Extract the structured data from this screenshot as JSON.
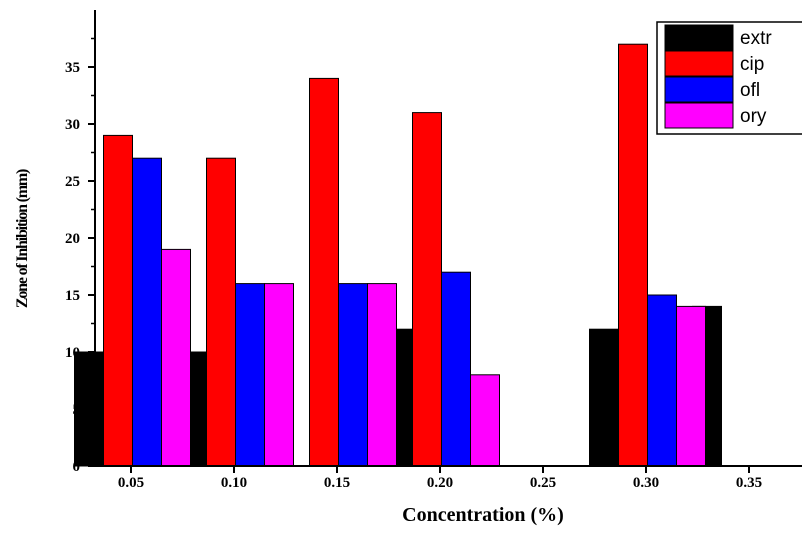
{
  "chart_data": {
    "type": "bar",
    "xlabel": "Concentration (%)",
    "ylabel": "Zone of Inhibition (mm)",
    "ylim": [
      0,
      40
    ],
    "yticks": [
      0,
      5,
      10,
      15,
      20,
      25,
      30,
      35
    ],
    "categories": [
      "0.05",
      "0.10",
      "0.15",
      "0.20",
      "0.25",
      "0.30",
      "0.35"
    ],
    "series": [
      {
        "name": "extr",
        "color": "#000000",
        "values": [
          10,
          10,
          0,
          12,
          0,
          12,
          14
        ]
      },
      {
        "name": "cip",
        "color": "#ff0000",
        "values": [
          29,
          27,
          34,
          31,
          0,
          37,
          0
        ]
      },
      {
        "name": "ofl",
        "color": "#0000ff",
        "values": [
          27,
          16,
          16,
          17,
          0,
          15,
          0
        ]
      },
      {
        "name": "ory",
        "color": "#ff00ff",
        "values": [
          19,
          16,
          16,
          8,
          0,
          14,
          0
        ]
      }
    ],
    "legend_position": "top-right",
    "grid": false
  }
}
